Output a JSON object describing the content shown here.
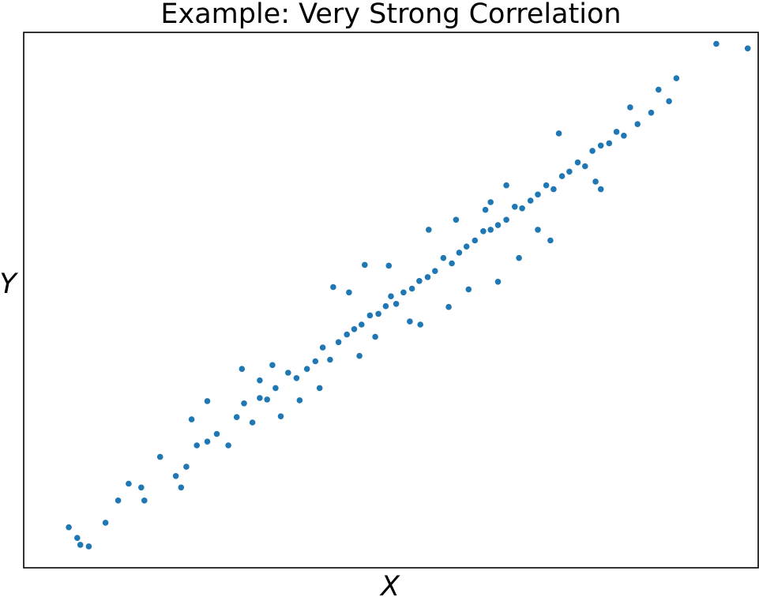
{
  "chart_data": {
    "type": "scatter",
    "title": "Example: Very Strong Correlation",
    "xlabel": "X",
    "ylabel": "Y",
    "xlim": [
      -3.5,
      3.5
    ],
    "ylim": [
      -3.5,
      3.5
    ],
    "grid": false,
    "show_ticks": false,
    "color": "#1f77b4",
    "points": [
      [
        -3.07,
        -2.97
      ],
      [
        -2.96,
        -3.2
      ],
      [
        -2.99,
        -3.11
      ],
      [
        -2.88,
        -3.22
      ],
      [
        -2.72,
        -2.91
      ],
      [
        -2.5,
        -2.4
      ],
      [
        -2.38,
        -2.45
      ],
      [
        -2.2,
        -2.05
      ],
      [
        -2.05,
        -2.3
      ],
      [
        -1.95,
        -2.18
      ],
      [
        -1.85,
        -1.9
      ],
      [
        -1.75,
        -1.85
      ],
      [
        -1.66,
        -1.75
      ],
      [
        -1.55,
        -1.9
      ],
      [
        -1.47,
        -1.53
      ],
      [
        -1.4,
        -1.35
      ],
      [
        -1.32,
        -1.6
      ],
      [
        -1.25,
        -1.28
      ],
      [
        -1.18,
        -1.3
      ],
      [
        -1.1,
        -1.15
      ],
      [
        -1.05,
        -1.52
      ],
      [
        -0.98,
        -0.95
      ],
      [
        -0.9,
        -1.02
      ],
      [
        -0.8,
        -0.9
      ],
      [
        -0.72,
        -0.8
      ],
      [
        -0.65,
        -0.62
      ],
      [
        -0.58,
        -0.78
      ],
      [
        -0.5,
        -0.55
      ],
      [
        -0.42,
        -0.45
      ],
      [
        -0.35,
        -0.38
      ],
      [
        -0.28,
        -0.32
      ],
      [
        -0.2,
        -0.2
      ],
      [
        -0.12,
        -0.18
      ],
      [
        -0.05,
        -0.08
      ],
      [
        0.0,
        0.05
      ],
      [
        0.05,
        -0.05
      ],
      [
        0.12,
        0.1
      ],
      [
        0.2,
        0.15
      ],
      [
        0.27,
        0.25
      ],
      [
        0.35,
        0.3
      ],
      [
        0.42,
        0.38
      ],
      [
        0.5,
        0.55
      ],
      [
        0.58,
        0.48
      ],
      [
        0.65,
        0.62
      ],
      [
        0.72,
        0.7
      ],
      [
        0.8,
        0.78
      ],
      [
        0.88,
        0.9
      ],
      [
        0.95,
        0.92
      ],
      [
        1.02,
        0.98
      ],
      [
        1.1,
        1.05
      ],
      [
        1.18,
        1.22
      ],
      [
        1.25,
        1.2
      ],
      [
        1.33,
        1.3
      ],
      [
        1.4,
        1.38
      ],
      [
        1.48,
        1.5
      ],
      [
        1.55,
        1.45
      ],
      [
        1.63,
        1.62
      ],
      [
        1.7,
        1.68
      ],
      [
        1.78,
        1.8
      ],
      [
        1.85,
        1.75
      ],
      [
        1.92,
        1.95
      ],
      [
        2.0,
        2.02
      ],
      [
        2.08,
        2.05
      ],
      [
        2.15,
        2.2
      ],
      [
        2.22,
        2.15
      ],
      [
        2.35,
        2.3
      ],
      [
        2.48,
        2.45
      ],
      [
        2.55,
        2.75
      ],
      [
        2.65,
        2.6
      ],
      [
        2.72,
        2.9
      ],
      [
        3.1,
        3.35
      ],
      [
        3.4,
        3.29
      ],
      [
        0.74,
        0.14
      ],
      [
        1.02,
        0.24
      ],
      [
        1.52,
        0.78
      ],
      [
        -0.87,
        -1.31
      ],
      [
        -0.25,
        0.46
      ],
      [
        -0.55,
        0.17
      ],
      [
        -1.13,
        -0.85
      ],
      [
        0.18,
        -0.28
      ],
      [
        0.55,
        -0.09
      ],
      [
        -0.3,
        -0.73
      ],
      [
        1.22,
        0.55
      ],
      [
        -1.42,
        -0.9
      ],
      [
        0.9,
        1.18
      ],
      [
        2.0,
        1.45
      ],
      [
        1.6,
        2.18
      ],
      [
        0.36,
        0.92
      ],
      [
        -0.68,
        -1.15
      ],
      [
        -2.0,
        -2.45
      ],
      [
        -0.02,
        0.45
      ],
      [
        1.1,
        1.5
      ],
      [
        -1.75,
        -1.32
      ],
      [
        0.62,
        1.05
      ],
      [
        1.4,
        0.92
      ],
      [
        -0.4,
        0.1
      ],
      [
        2.28,
        2.52
      ],
      [
        0.28,
        -0.32
      ],
      [
        -1.25,
        -1.05
      ],
      [
        -1.9,
        -1.56
      ],
      [
        -2.6,
        -2.62
      ],
      [
        -2.35,
        -2.62
      ],
      [
        -0.15,
        -0.48
      ],
      [
        0.95,
        1.28
      ],
      [
        1.95,
        1.55
      ]
    ]
  }
}
